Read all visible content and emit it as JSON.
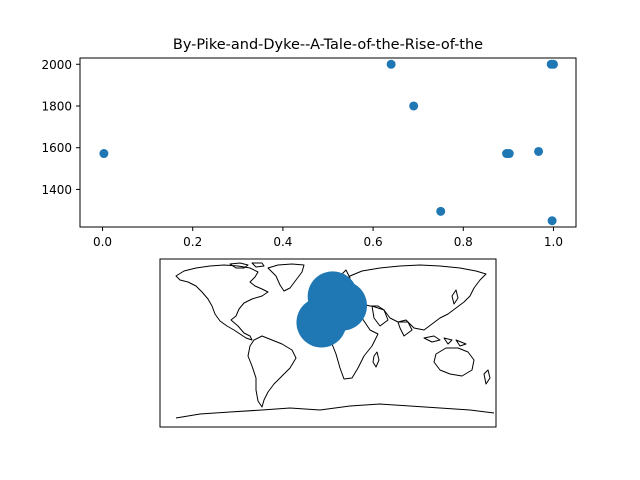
{
  "chart_data": [
    {
      "type": "scatter",
      "title": "By-Pike-and-Dyke--A-Tale-of-the-Rise-of-the",
      "xlabel": "",
      "ylabel": "",
      "xlim": [
        -0.05,
        1.05
      ],
      "ylim": [
        1220,
        2030
      ],
      "xticks": [
        0.0,
        0.2,
        0.4,
        0.6,
        0.8,
        1.0
      ],
      "xtick_labels": [
        "0.0",
        "0.2",
        "0.4",
        "0.6",
        "0.8",
        "1.0"
      ],
      "yticks": [
        1400,
        1600,
        1800,
        2000
      ],
      "ytick_labels": [
        "1400",
        "1600",
        "1800",
        "2000"
      ],
      "grid": false,
      "marker_color": "#1f77b4",
      "points": [
        {
          "x": 0.003,
          "y": 1572
        },
        {
          "x": 0.64,
          "y": 2000
        },
        {
          "x": 0.69,
          "y": 1800
        },
        {
          "x": 0.75,
          "y": 1295
        },
        {
          "x": 0.896,
          "y": 1572
        },
        {
          "x": 0.902,
          "y": 1572
        },
        {
          "x": 0.967,
          "y": 1582
        },
        {
          "x": 0.995,
          "y": 2000
        },
        {
          "x": 1.0,
          "y": 2000
        },
        {
          "x": 0.997,
          "y": 1250
        }
      ]
    },
    {
      "type": "map",
      "projection": "equirectangular",
      "lon_range": [
        -180,
        180
      ],
      "lat_range": [
        -90,
        90
      ],
      "marker_color": "#1f77b4",
      "points": [
        {
          "lon": -7,
          "lat": 22,
          "size": "large"
        },
        {
          "lon": 15,
          "lat": 40,
          "size": "large"
        },
        {
          "lon": 5,
          "lat": 50,
          "size": "large"
        }
      ]
    }
  ]
}
